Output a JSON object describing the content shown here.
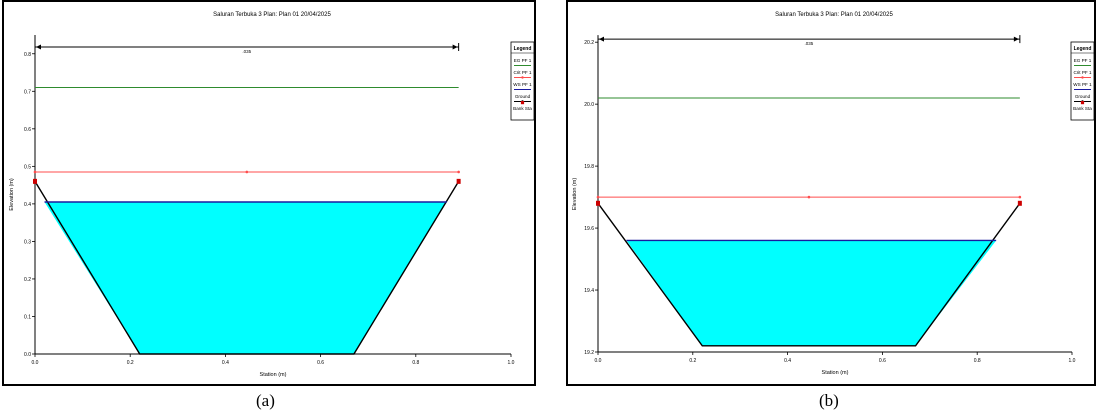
{
  "colors": {
    "eg": "#2e8b2e",
    "crit": "#ff4d4d",
    "ws": "#1a1aa0",
    "water_fill": "#00ffff",
    "ground": "#000000",
    "bank_sta": "#cc0000"
  },
  "chart_data": [
    {
      "type": "line",
      "title": "Saluran Terbuka 3      Plan: Plan 01    20/04/2025",
      "xlabel": "Station (m)",
      "ylabel": "Elevation (m)",
      "xlim": [
        0.0,
        1.0
      ],
      "ylim": [
        0.0,
        0.85
      ],
      "xticks": [
        "0.0",
        "0.2",
        "0.4",
        "0.6",
        "0.8",
        "1.0"
      ],
      "yticks": [
        "0.0",
        "0.1",
        "0.2",
        "0.3",
        "0.4",
        "0.5",
        "0.6",
        "0.7",
        "0.8"
      ],
      "manning_label": ".035",
      "manning_x": [
        0.0,
        0.89
      ],
      "manning_y": 0.818,
      "ground": {
        "x": [
          0.0,
          0.22,
          0.67,
          0.89
        ],
        "y": [
          0.46,
          0.0,
          0.0,
          0.46
        ]
      },
      "eg": {
        "x": [
          0.0,
          0.89
        ],
        "y": 0.71
      },
      "crit": {
        "x": [
          0.0,
          0.445,
          0.89
        ],
        "y": 0.485
      },
      "ws": {
        "x": [
          0.02,
          0.865
        ],
        "y": 0.405
      },
      "bank_sta": {
        "x": [
          0.0,
          0.89
        ],
        "y": [
          0.46,
          0.46
        ]
      },
      "legend": {
        "title": "Legend",
        "entries": [
          "EG PF 1",
          "Crit PF 1",
          "WS PF 1",
          "Ground",
          "Bank Sta"
        ]
      }
    },
    {
      "type": "line",
      "title": "Saluran Terbuka 3      Plan: Plan 01    20/04/2025",
      "xlabel": "Station (m)",
      "ylabel": "Elevation (m)",
      "xlim": [
        0.0,
        1.0
      ],
      "ylim": [
        19.2,
        20.22
      ],
      "xticks": [
        "0.0",
        "0.2",
        "0.4",
        "0.6",
        "0.8",
        "1.0"
      ],
      "yticks": [
        "19.2",
        "19.4",
        "19.6",
        "19.8",
        "20.0",
        "20.2"
      ],
      "manning_label": ".035",
      "manning_x": [
        0.0,
        0.89
      ],
      "manning_y": 20.21,
      "ground": {
        "x": [
          0.0,
          0.22,
          0.67,
          0.89
        ],
        "y": [
          19.68,
          19.22,
          19.22,
          19.68
        ]
      },
      "eg": {
        "x": [
          0.0,
          0.89
        ],
        "y": 20.02
      },
      "crit": {
        "x": [
          0.0,
          0.445,
          0.89
        ],
        "y": 19.7
      },
      "ws": {
        "x": [
          0.06,
          0.84
        ],
        "y": 19.56
      },
      "bank_sta": {
        "x": [
          0.0,
          0.89
        ],
        "y": [
          19.68,
          19.68
        ]
      },
      "legend": {
        "title": "Legend",
        "entries": [
          "EG PF 1",
          "Crit PF 1",
          "WS PF 1",
          "Ground",
          "Bank Sta"
        ]
      }
    }
  ],
  "captions": [
    "(a)",
    "(b)"
  ]
}
